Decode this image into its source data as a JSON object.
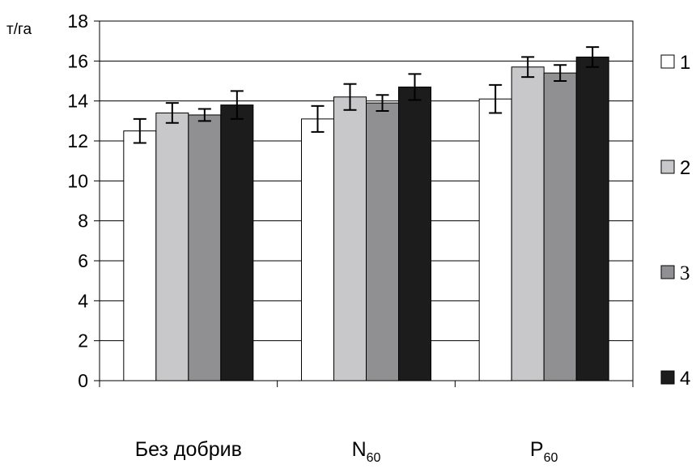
{
  "chart_data": {
    "type": "bar",
    "unit_label": "т/га",
    "categories": [
      {
        "base": "Без добрив",
        "sub": ""
      },
      {
        "base": "N",
        "sub": "60"
      },
      {
        "base": "P",
        "sub": "60"
      }
    ],
    "series": [
      {
        "name": "1",
        "color": "#ffffff",
        "values": [
          12.5,
          13.1,
          14.1
        ],
        "errors": [
          0.6,
          0.65,
          0.7
        ]
      },
      {
        "name": "2",
        "color": "#c8c8ca",
        "values": [
          13.4,
          14.2,
          15.7
        ],
        "errors": [
          0.5,
          0.65,
          0.5
        ]
      },
      {
        "name": "3",
        "color": "#909092",
        "values": [
          13.3,
          13.9,
          15.4
        ],
        "errors": [
          0.3,
          0.4,
          0.4
        ]
      },
      {
        "name": "4",
        "color": "#1c1c1c",
        "values": [
          13.8,
          14.7,
          16.2
        ],
        "errors": [
          0.7,
          0.65,
          0.5
        ]
      }
    ],
    "ylim": [
      0,
      18
    ],
    "yticks": [
      0,
      2,
      4,
      6,
      8,
      10,
      12,
      14,
      16,
      18
    ],
    "grid": true,
    "legend_position": "right"
  }
}
